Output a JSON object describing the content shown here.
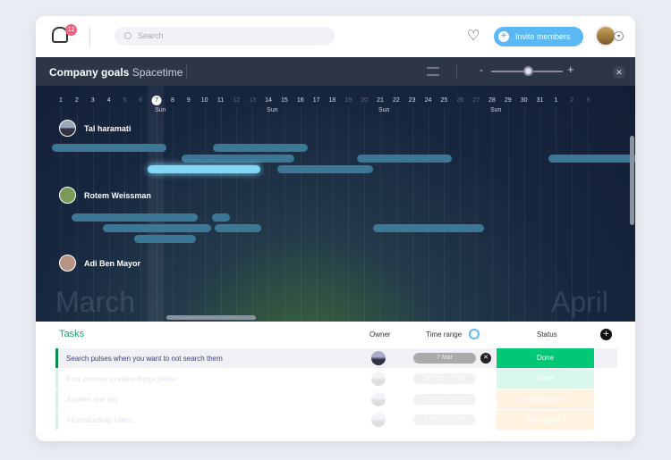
{
  "topbar": {
    "notifications": "12",
    "search_placeholder": "Search",
    "invite_label": "Invite members"
  },
  "timeline": {
    "title_bold": "Company goals",
    "title_rest": "Spacetime",
    "days": [
      "1",
      "2",
      "3",
      "4",
      "5",
      "6",
      "7",
      "8",
      "9",
      "10",
      "11",
      "12",
      "13",
      "14",
      "15",
      "16",
      "17",
      "18",
      "19",
      "20",
      "21",
      "22",
      "23",
      "24",
      "25",
      "26",
      "27",
      "28",
      "29",
      "30",
      "31",
      "1",
      "2",
      "3"
    ],
    "current_day": "7",
    "weekday_label": "Sun",
    "people": [
      "Tal haramati",
      "Rotem Weissman",
      "Adi Ben Mayor"
    ],
    "months": [
      "March",
      "April"
    ],
    "zoom_level": 0.5
  },
  "tasks": {
    "title": "Tasks",
    "columns": [
      "Owner",
      "Time range",
      "Status"
    ],
    "rows": [
      {
        "name": "Search pulses when you want to not search them",
        "range": "7 Mar",
        "status": "Done",
        "color": "#00c875"
      },
      {
        "name": "Post process to make things better",
        "range": "25 Feb - 7 Mar",
        "status": "Done",
        "color": "#00c875"
      },
      {
        "name": "Another one day",
        "range": "2 Mar - 8 Mar",
        "status": "Working on it",
        "color": "#fdab3d"
      },
      {
        "name": "All productivity killers",
        "range": "4 Mar - 10 Mar",
        "status": "Working on it",
        "color": "#fdab3d"
      }
    ]
  },
  "colors": {
    "accent": "#5ab8f5",
    "done": "#00c875",
    "tasks_title": "#24a36b"
  }
}
